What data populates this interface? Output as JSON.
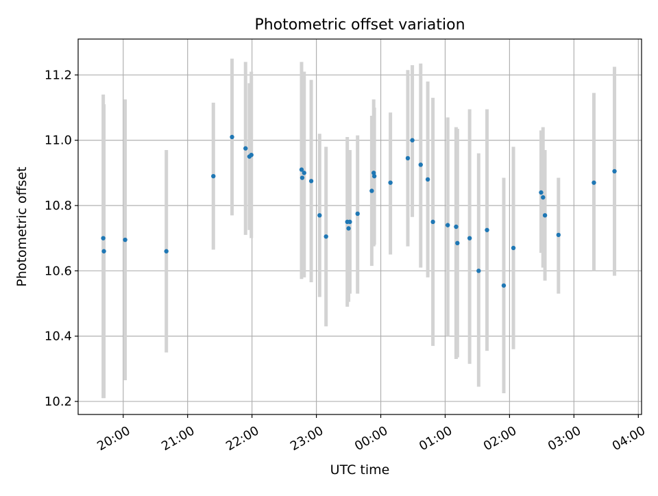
{
  "chart_data": {
    "type": "scatter",
    "title": "Photometric offset variation",
    "xlabel": "UTC time",
    "ylabel": "Photometric offset",
    "x_unit": "hours since 00:00 UTC",
    "xlim": [
      -4.7,
      4.05
    ],
    "ylim": [
      10.16,
      11.31
    ],
    "grid": true,
    "x_ticks": [
      {
        "value": -4,
        "label": "20:00"
      },
      {
        "value": -3,
        "label": "21:00"
      },
      {
        "value": -2,
        "label": "22:00"
      },
      {
        "value": -1,
        "label": "23:00"
      },
      {
        "value": 0,
        "label": "00:00"
      },
      {
        "value": 1,
        "label": "01:00"
      },
      {
        "value": 2,
        "label": "02:00"
      },
      {
        "value": 3,
        "label": "03:00"
      },
      {
        "value": 4,
        "label": "04:00"
      }
    ],
    "y_ticks": [
      {
        "value": 10.2,
        "label": "10.2"
      },
      {
        "value": 10.4,
        "label": "10.4"
      },
      {
        "value": 10.6,
        "label": "10.6"
      },
      {
        "value": 10.8,
        "label": "10.8"
      },
      {
        "value": 11.0,
        "label": "11.0"
      },
      {
        "value": 11.2,
        "label": "11.2"
      }
    ],
    "series": [
      {
        "name": "offset",
        "marker_color": "#1f77b4",
        "errorbar_color": "#d3d3d3",
        "points": [
          {
            "x": -4.31,
            "y": 10.7,
            "lo": 10.21,
            "hi": 11.14
          },
          {
            "x": -4.3,
            "y": 10.66,
            "lo": 10.21,
            "hi": 11.11
          },
          {
            "x": -3.97,
            "y": 10.695,
            "lo": 10.265,
            "hi": 11.125
          },
          {
            "x": -3.33,
            "y": 10.66,
            "lo": 10.35,
            "hi": 10.97
          },
          {
            "x": -2.6,
            "y": 10.89,
            "lo": 10.665,
            "hi": 11.115
          },
          {
            "x": -2.31,
            "y": 11.01,
            "lo": 10.77,
            "hi": 11.25
          },
          {
            "x": -2.1,
            "y": 10.975,
            "lo": 10.71,
            "hi": 11.24
          },
          {
            "x": -2.04,
            "y": 10.95,
            "lo": 10.725,
            "hi": 11.175
          },
          {
            "x": -2.01,
            "y": 10.955,
            "lo": 10.7,
            "hi": 11.21
          },
          {
            "x": -1.23,
            "y": 10.91,
            "lo": 10.575,
            "hi": 11.24
          },
          {
            "x": -1.22,
            "y": 10.885,
            "lo": 10.59,
            "hi": 11.21
          },
          {
            "x": -1.19,
            "y": 10.9,
            "lo": 10.58,
            "hi": 11.21
          },
          {
            "x": -1.08,
            "y": 10.875,
            "lo": 10.565,
            "hi": 11.185
          },
          {
            "x": -0.95,
            "y": 10.77,
            "lo": 10.52,
            "hi": 11.02
          },
          {
            "x": -0.85,
            "y": 10.705,
            "lo": 10.43,
            "hi": 10.98
          },
          {
            "x": -0.52,
            "y": 10.75,
            "lo": 10.49,
            "hi": 11.01
          },
          {
            "x": -0.5,
            "y": 10.73,
            "lo": 10.505,
            "hi": 10.955
          },
          {
            "x": -0.48,
            "y": 10.75,
            "lo": 10.53,
            "hi": 10.97
          },
          {
            "x": -0.36,
            "y": 10.775,
            "lo": 10.53,
            "hi": 11.015
          },
          {
            "x": -0.14,
            "y": 10.845,
            "lo": 10.615,
            "hi": 11.075
          },
          {
            "x": -0.11,
            "y": 10.9,
            "lo": 10.675,
            "hi": 11.125
          },
          {
            "x": -0.1,
            "y": 10.89,
            "lo": 10.68,
            "hi": 11.1
          },
          {
            "x": 0.15,
            "y": 10.87,
            "lo": 10.65,
            "hi": 11.085
          },
          {
            "x": 0.42,
            "y": 10.945,
            "lo": 10.675,
            "hi": 11.215
          },
          {
            "x": 0.49,
            "y": 11.0,
            "lo": 10.765,
            "hi": 11.23
          },
          {
            "x": 0.62,
            "y": 10.925,
            "lo": 10.61,
            "hi": 11.235
          },
          {
            "x": 0.73,
            "y": 10.88,
            "lo": 10.58,
            "hi": 11.18
          },
          {
            "x": 0.81,
            "y": 10.75,
            "lo": 10.37,
            "hi": 11.13
          },
          {
            "x": 1.04,
            "y": 10.74,
            "lo": 10.4,
            "hi": 11.07
          },
          {
            "x": 1.17,
            "y": 10.735,
            "lo": 10.33,
            "hi": 11.04
          },
          {
            "x": 1.19,
            "y": 10.685,
            "lo": 10.335,
            "hi": 11.035
          },
          {
            "x": 1.38,
            "y": 10.7,
            "lo": 10.315,
            "hi": 11.095
          },
          {
            "x": 1.52,
            "y": 10.6,
            "lo": 10.245,
            "hi": 10.96
          },
          {
            "x": 1.65,
            "y": 10.725,
            "lo": 10.355,
            "hi": 11.095
          },
          {
            "x": 1.91,
            "y": 10.555,
            "lo": 10.225,
            "hi": 10.885
          },
          {
            "x": 2.06,
            "y": 10.67,
            "lo": 10.36,
            "hi": 10.98
          },
          {
            "x": 2.49,
            "y": 10.84,
            "lo": 10.655,
            "hi": 11.03
          },
          {
            "x": 2.52,
            "y": 10.825,
            "lo": 10.61,
            "hi": 11.04
          },
          {
            "x": 2.55,
            "y": 10.77,
            "lo": 10.57,
            "hi": 10.97
          },
          {
            "x": 2.76,
            "y": 10.71,
            "lo": 10.53,
            "hi": 10.885
          },
          {
            "x": 3.31,
            "y": 10.87,
            "lo": 10.6,
            "hi": 11.145
          },
          {
            "x": 3.63,
            "y": 10.905,
            "lo": 10.585,
            "hi": 11.225
          }
        ]
      }
    ]
  }
}
